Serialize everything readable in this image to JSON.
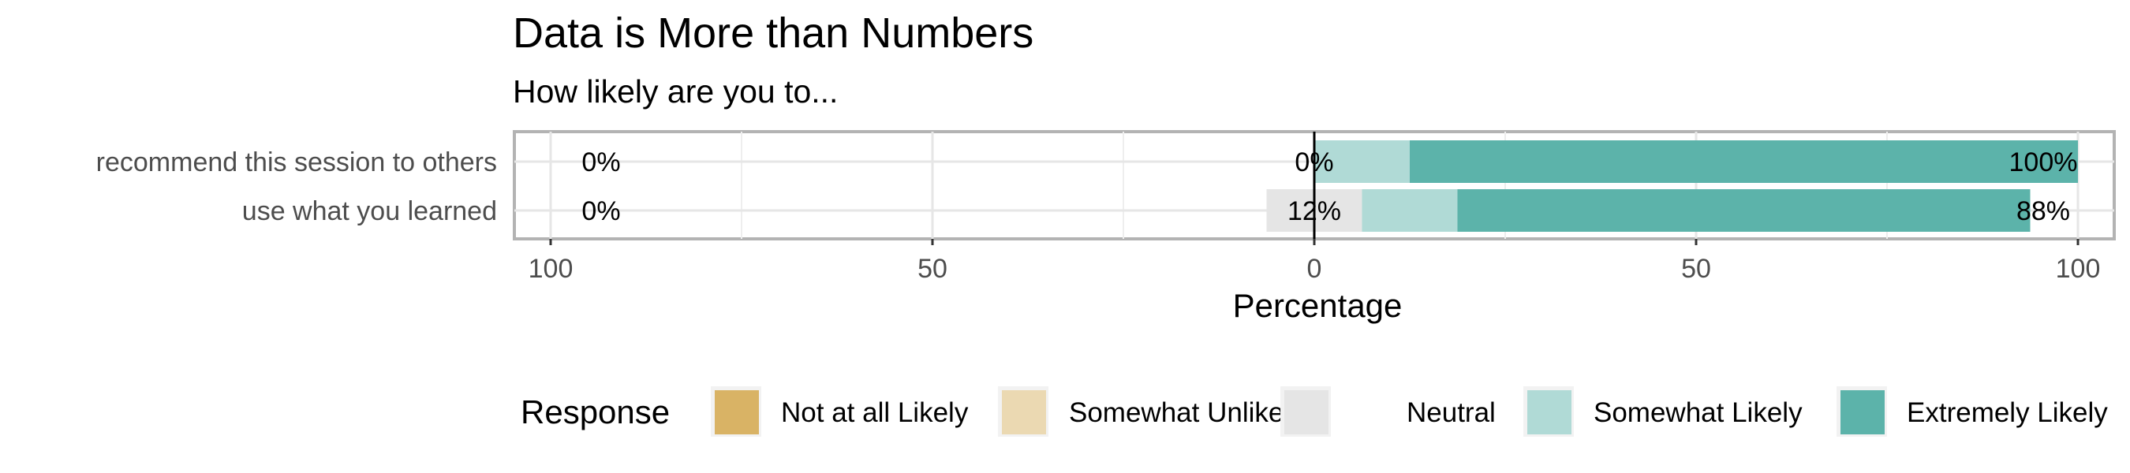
{
  "chart_data": {
    "type": "bar",
    "orientation": "horizontal",
    "stacked": "diverging",
    "title": "Data is More than Numbers",
    "subtitle": "How likely are you to...",
    "xlabel": "Percentage",
    "xlim": [
      -100,
      100
    ],
    "xticks": [
      {
        "value": -100,
        "label": "100"
      },
      {
        "value": -50,
        "label": "50"
      },
      {
        "value": 0,
        "label": "0"
      },
      {
        "value": 50,
        "label": "50"
      },
      {
        "value": 100,
        "label": "100"
      }
    ],
    "categories": [
      "recommend this session to others",
      "use what you learned"
    ],
    "series": [
      {
        "name": "Not at all Likely",
        "color": "#D9B365",
        "values": [
          0,
          0
        ]
      },
      {
        "name": "Somewhat Unlikely",
        "color": "#EBD9B2",
        "values": [
          0,
          0
        ]
      },
      {
        "name": "Neutral",
        "color": "#E5E5E5",
        "values": [
          0,
          12.5
        ]
      },
      {
        "name": "Somewhat Likely",
        "color": "#B0DAD6",
        "values": [
          12.5,
          12.5
        ]
      },
      {
        "name": "Extremely Likely",
        "color": "#5CB3AA",
        "values": [
          87.5,
          75
        ]
      }
    ],
    "labels": {
      "left": [
        "0%",
        "0%"
      ],
      "center": [
        "0%",
        "12%"
      ],
      "right": [
        "100%",
        "88%"
      ]
    },
    "legend": {
      "title": "Response",
      "position": "bottom"
    },
    "grid": true
  }
}
